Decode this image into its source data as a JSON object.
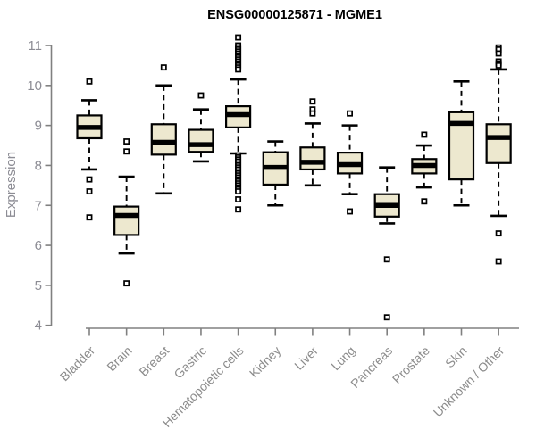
{
  "chart_data": {
    "type": "boxplot",
    "title": "ENSG00000125871 - MGME1",
    "ylabel": "Expression",
    "ylim": [
      4,
      11
    ],
    "yticks": [
      4,
      5,
      6,
      7,
      8,
      9,
      10,
      11
    ],
    "grid": false,
    "legend": "none",
    "colors": {
      "box_fill": "#EDE8CF",
      "box_border": "#000000",
      "median": "#000000",
      "axis": "#808080",
      "y_tick_text": "#8C8C94",
      "x_tick_text": "#8C8C8C",
      "title_text": "#000000",
      "background": "#FFFFFF"
    },
    "categories": [
      "Bladder",
      "Brain",
      "Breast",
      "Gastric",
      "Hematopoietic cells",
      "Kidney",
      "Liver",
      "Lung",
      "Pancreas",
      "Prostate",
      "Skin",
      "Unknown / Other"
    ],
    "boxes": [
      {
        "name": "Bladder",
        "whisker_low": 7.9,
        "q1": 8.68,
        "median": 8.95,
        "q3": 9.25,
        "whisker_high": 9.63,
        "outliers": [
          10.1,
          7.65,
          7.35,
          6.7
        ]
      },
      {
        "name": "Brain",
        "whisker_low": 5.8,
        "q1": 6.26,
        "median": 6.75,
        "q3": 6.97,
        "whisker_high": 7.72,
        "outliers": [
          8.6,
          8.35,
          5.05
        ]
      },
      {
        "name": "Breast",
        "whisker_low": 7.3,
        "q1": 8.27,
        "median": 8.58,
        "q3": 9.03,
        "whisker_high": 10.0,
        "outliers": [
          10.45
        ]
      },
      {
        "name": "Gastric",
        "whisker_low": 8.1,
        "q1": 8.34,
        "median": 8.52,
        "q3": 8.89,
        "whisker_high": 9.4,
        "outliers": [
          9.75
        ]
      },
      {
        "name": "Hematopoietic cells",
        "whisker_low": 8.3,
        "q1": 8.95,
        "median": 9.27,
        "q3": 9.48,
        "whisker_high": 10.15,
        "outliers": [
          11.2,
          11.0,
          10.95,
          10.9,
          10.85,
          10.8,
          10.75,
          10.7,
          10.65,
          10.6,
          10.55,
          10.5,
          10.45,
          10.4,
          8.25,
          8.2,
          8.15,
          8.1,
          8.05,
          8.0,
          7.95,
          7.9,
          7.85,
          7.8,
          7.75,
          7.7,
          7.65,
          7.6,
          7.55,
          7.5,
          7.45,
          7.4,
          7.35,
          7.15,
          6.9
        ]
      },
      {
        "name": "Kidney",
        "whisker_low": 7.0,
        "q1": 7.52,
        "median": 7.95,
        "q3": 8.33,
        "whisker_high": 8.6,
        "outliers": []
      },
      {
        "name": "Liver",
        "whisker_low": 7.5,
        "q1": 7.9,
        "median": 8.08,
        "q3": 8.45,
        "whisker_high": 9.05,
        "outliers": [
          9.6,
          9.4,
          9.3
        ]
      },
      {
        "name": "Lung",
        "whisker_low": 7.28,
        "q1": 7.8,
        "median": 8.02,
        "q3": 8.32,
        "whisker_high": 9.0,
        "outliers": [
          9.3,
          6.85
        ]
      },
      {
        "name": "Pancreas",
        "whisker_low": 6.55,
        "q1": 6.72,
        "median": 7.0,
        "q3": 7.28,
        "whisker_high": 7.95,
        "outliers": [
          5.65,
          4.2
        ]
      },
      {
        "name": "Prostate",
        "whisker_low": 7.45,
        "q1": 7.8,
        "median": 8.0,
        "q3": 8.16,
        "whisker_high": 8.5,
        "outliers": [
          8.77,
          7.1
        ]
      },
      {
        "name": "Skin",
        "whisker_low": 7.0,
        "q1": 7.65,
        "median": 9.05,
        "q3": 9.33,
        "whisker_high": 10.1,
        "outliers": []
      },
      {
        "name": "Unknown / Other",
        "whisker_low": 6.74,
        "q1": 8.06,
        "median": 8.7,
        "q3": 9.03,
        "whisker_high": 10.4,
        "outliers": [
          10.95,
          10.9,
          10.8,
          10.6,
          10.55,
          10.5,
          6.3,
          5.6
        ]
      }
    ]
  }
}
